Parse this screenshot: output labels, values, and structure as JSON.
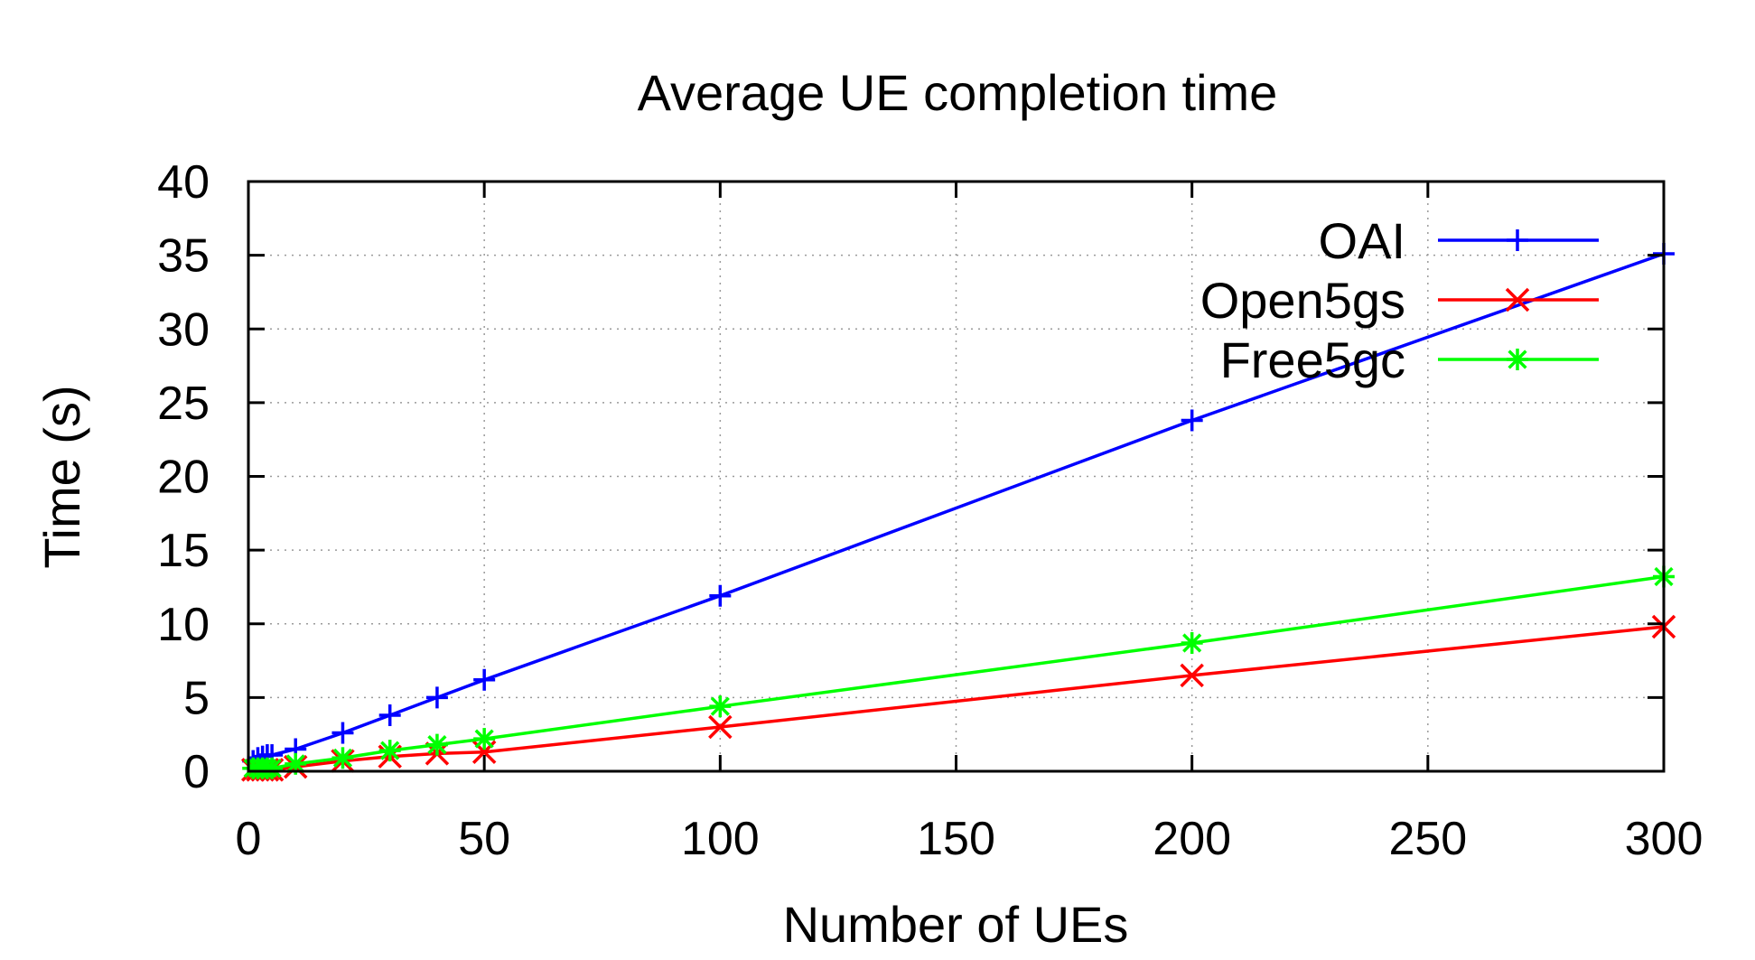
{
  "chart_data": {
    "type": "line",
    "title": "Average UE completion time",
    "xlabel": "Number of UEs",
    "ylabel": "Time (s)",
    "xlim": [
      0,
      300
    ],
    "ylim": [
      0,
      40
    ],
    "xticks": [
      0,
      50,
      100,
      150,
      200,
      250,
      300
    ],
    "yticks": [
      0,
      5,
      10,
      15,
      20,
      25,
      30,
      35,
      40
    ],
    "grid": true,
    "legend_position": "top-right",
    "series": [
      {
        "name": "OAI",
        "color": "#0000ff",
        "marker": "plus",
        "x": [
          1,
          2,
          3,
          4,
          5,
          10,
          20,
          30,
          40,
          50,
          100,
          200,
          300
        ],
        "y": [
          0.7,
          0.9,
          1.0,
          1.1,
          1.1,
          1.5,
          2.6,
          3.8,
          5.0,
          6.2,
          11.9,
          23.8,
          35.1
        ]
      },
      {
        "name": "Open5gs",
        "color": "#ff0000",
        "marker": "x",
        "x": [
          1,
          2,
          3,
          4,
          5,
          10,
          20,
          30,
          40,
          50,
          100,
          200,
          300
        ],
        "y": [
          0.1,
          0.1,
          0.1,
          0.1,
          0.1,
          0.3,
          0.7,
          1.0,
          1.2,
          1.3,
          3.0,
          6.5,
          9.8
        ]
      },
      {
        "name": "Free5gc",
        "color": "#00ff00",
        "marker": "star",
        "x": [
          1,
          2,
          3,
          4,
          5,
          10,
          20,
          30,
          40,
          50,
          100,
          200,
          300
        ],
        "y": [
          0.2,
          0.2,
          0.2,
          0.2,
          0.2,
          0.5,
          0.9,
          1.4,
          1.8,
          2.2,
          4.4,
          8.7,
          13.2
        ]
      }
    ]
  }
}
